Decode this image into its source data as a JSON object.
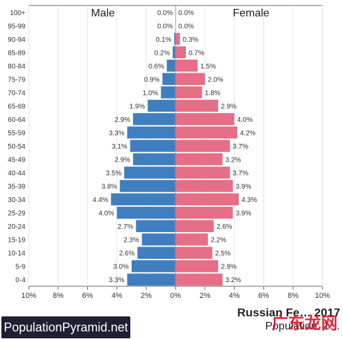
{
  "chart_data": {
    "type": "bar",
    "orientation": "horizontal-pyramid",
    "categories": [
      "100+",
      "95-99",
      "90-94",
      "85-89",
      "80-84",
      "75-79",
      "70-74",
      "65-69",
      "60-64",
      "55-59",
      "50-54",
      "45-49",
      "40-44",
      "35-39",
      "30-34",
      "25-29",
      "20-24",
      "15-19",
      "10-14",
      "5-9",
      "0-4"
    ],
    "series": [
      {
        "name": "Male",
        "values": [
          0.0,
          0.0,
          0.1,
          0.2,
          0.6,
          0.9,
          1.0,
          1.9,
          2.9,
          3.3,
          3.1,
          2.9,
          3.5,
          3.8,
          4.4,
          4.0,
          2.7,
          2.3,
          2.6,
          3.0,
          3.3
        ],
        "color": "#3f7fbf"
      },
      {
        "name": "Female",
        "values": [
          0.0,
          0.0,
          0.3,
          0.7,
          1.5,
          2.0,
          1.8,
          2.9,
          4.0,
          4.2,
          3.7,
          3.2,
          3.7,
          3.9,
          4.3,
          3.9,
          2.6,
          2.2,
          2.5,
          2.9,
          3.2
        ],
        "color": "#e86d86"
      }
    ],
    "xticks": [
      "10%",
      "8%",
      "6%",
      "4%",
      "2%",
      "0%",
      "2%",
      "4%",
      "6%",
      "8%",
      "10%"
    ],
    "xlim": [
      -10,
      10
    ],
    "grid": true
  },
  "brand": "PopulationPyramid.net",
  "caption": {
    "title": "Russian Fe… 2017",
    "population": "Population: 1…"
  },
  "watermark": "广东龙网"
}
